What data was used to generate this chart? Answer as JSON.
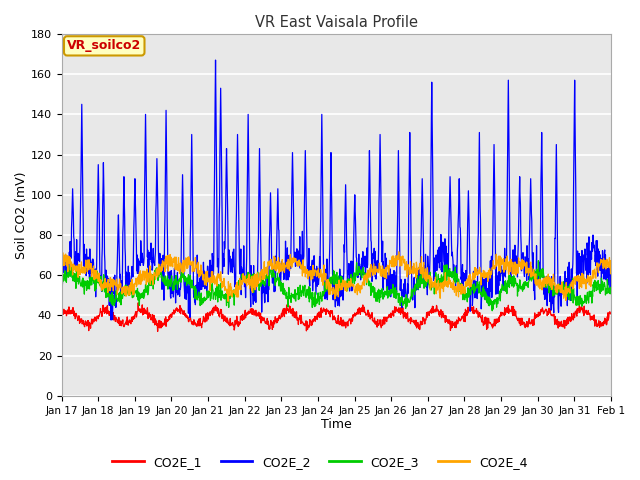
{
  "title": "VR East Vaisala Profile",
  "xlabel": "Time",
  "ylabel": "Soil CO2 (mV)",
  "ylim": [
    0,
    180
  ],
  "yticks": [
    0,
    20,
    40,
    60,
    80,
    100,
    120,
    140,
    160,
    180
  ],
  "xtick_labels": [
    "Jan 17",
    "Jan 18",
    "Jan 19",
    "Jan 20",
    "Jan 21",
    "Jan 22",
    "Jan 23",
    "Jan 24",
    "Jan 25",
    "Jan 26",
    "Jan 27",
    "Jan 28",
    "Jan 29",
    "Jan 30",
    "Jan 31",
    "Feb 1"
  ],
  "legend_labels": [
    "CO2E_1",
    "CO2E_2",
    "CO2E_3",
    "CO2E_4"
  ],
  "line_colors": [
    "#ff0000",
    "#0000ff",
    "#00cc00",
    "#ffa500"
  ],
  "annotation_text": "VR_soilco2",
  "annotation_color": "#cc0000",
  "annotation_bg": "#ffffc0",
  "annotation_border": "#cc9900",
  "fig_bg": "#ffffff",
  "plot_bg": "#e8e8e8",
  "grid_color": "#ffffff",
  "seed": 42
}
